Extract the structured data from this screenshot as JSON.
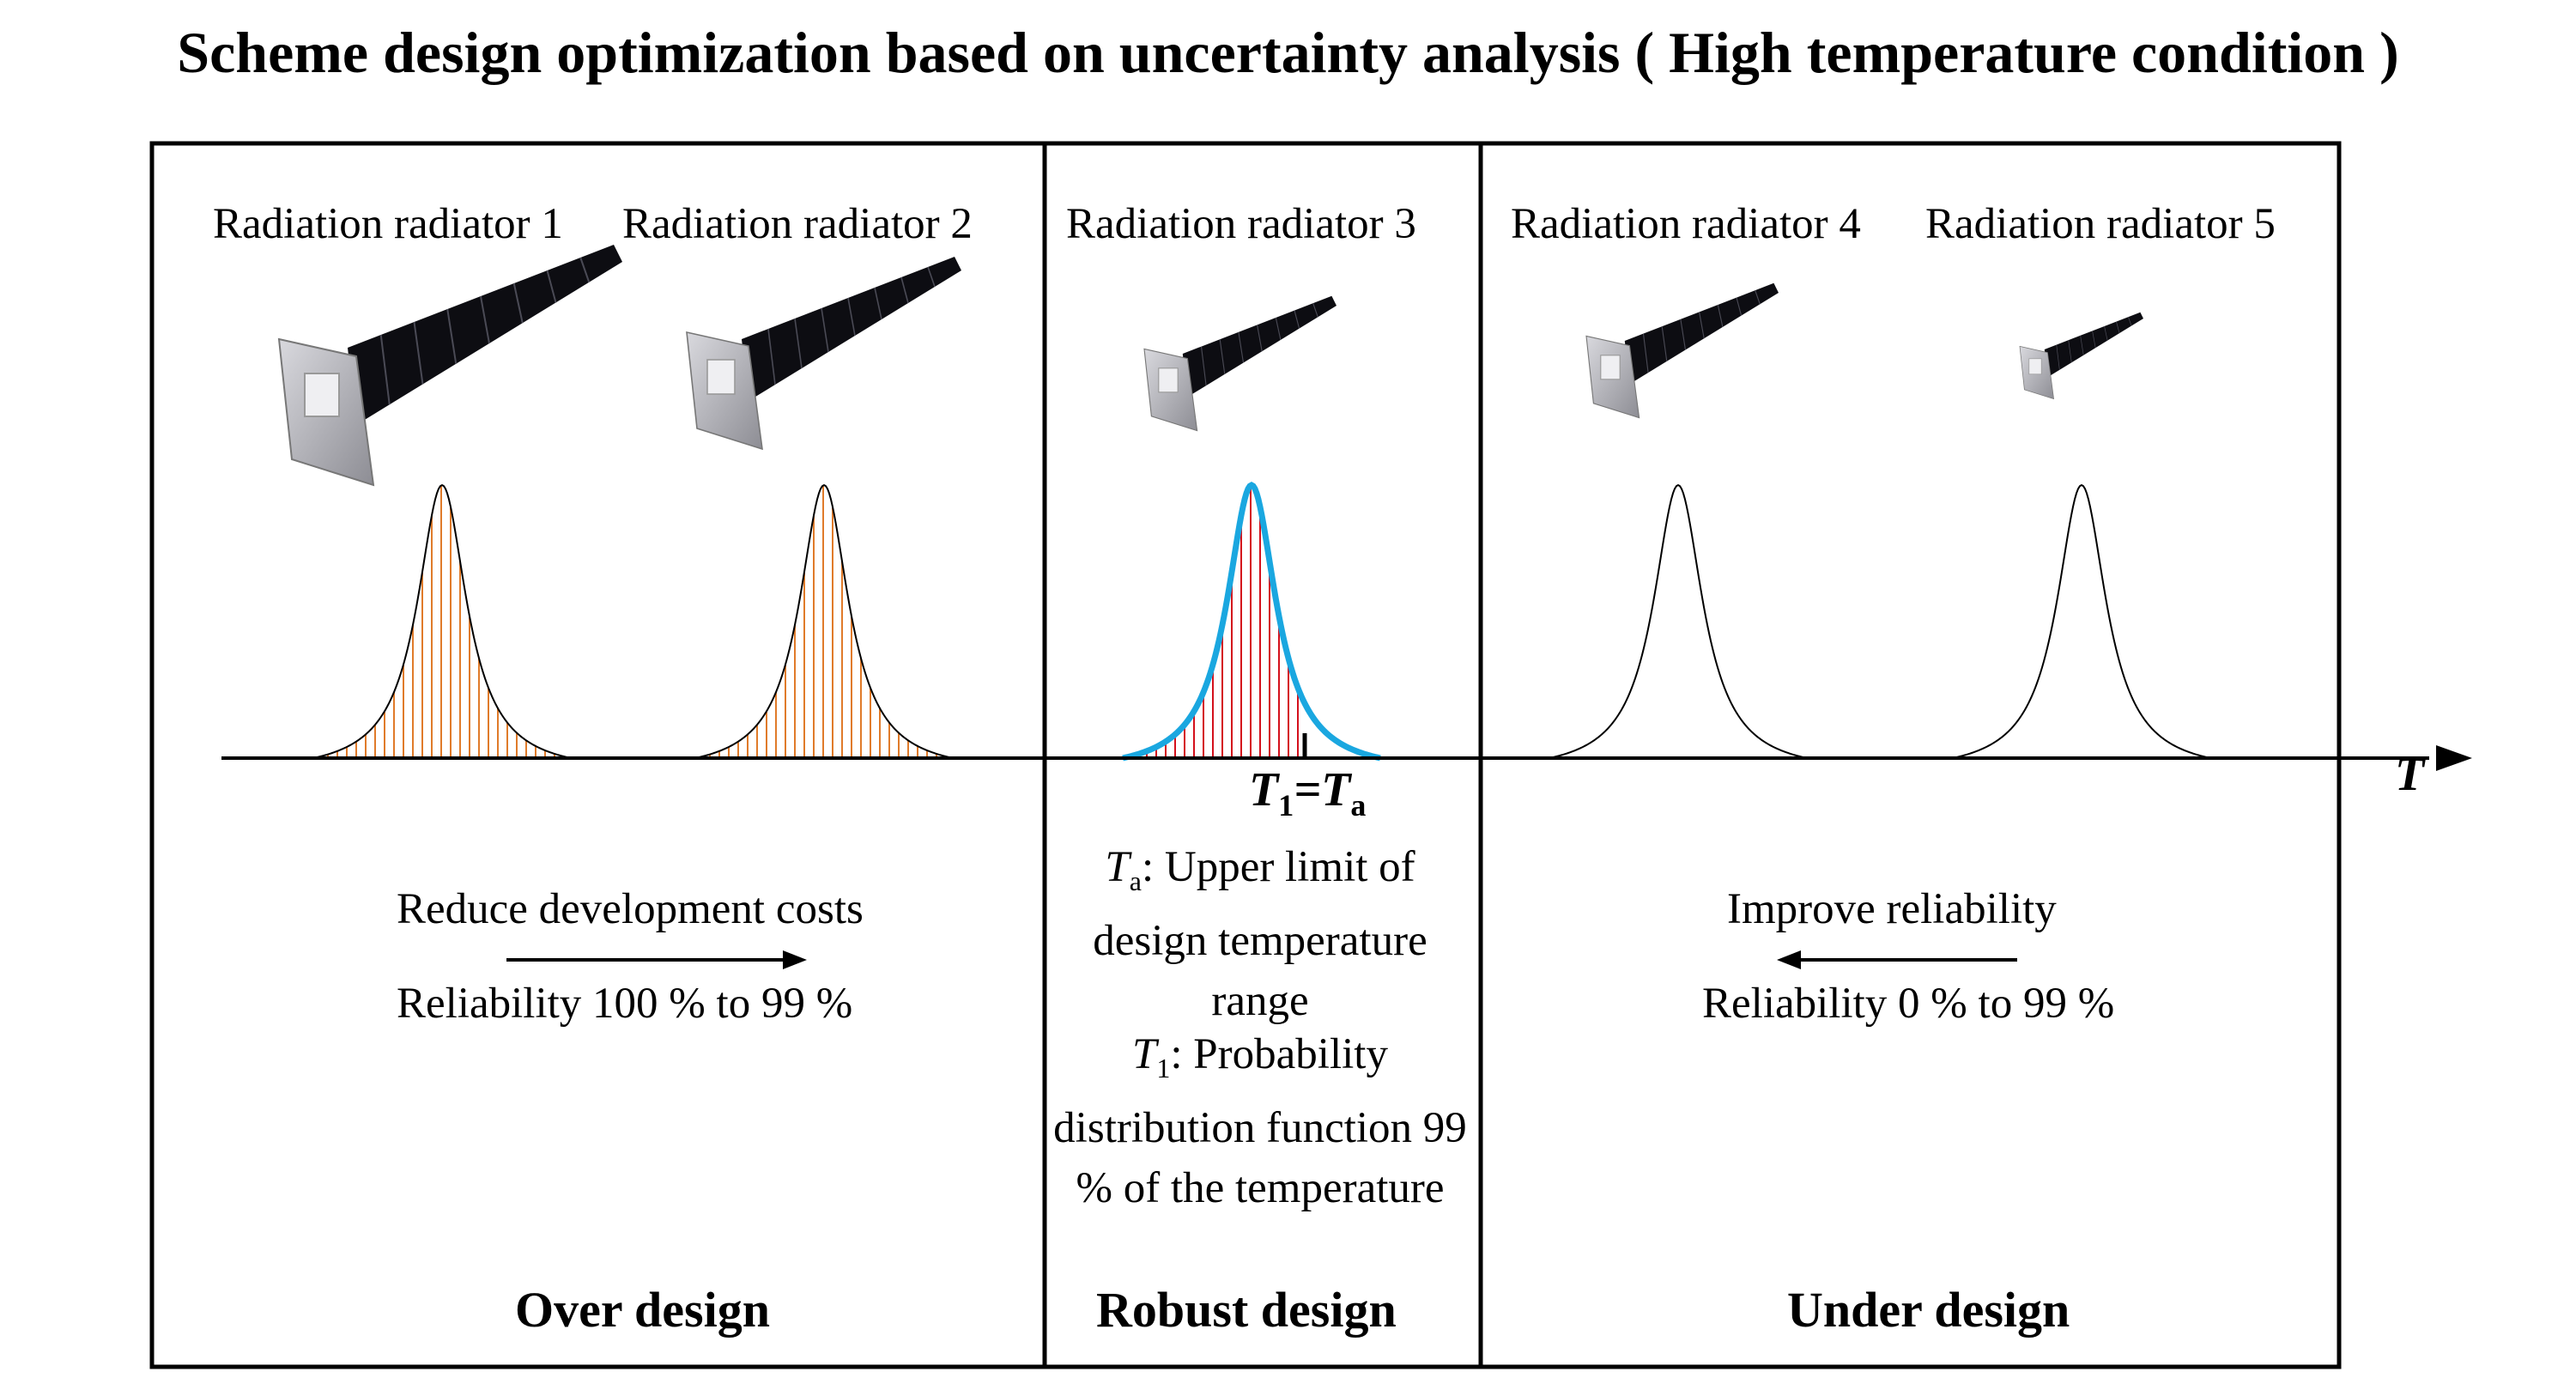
{
  "title": "Scheme design optimization based on uncertainty analysis ( High temperature condition )",
  "radiators": [
    {
      "label": "Radiation radiator 1"
    },
    {
      "label": "Radiation radiator 2"
    },
    {
      "label": "Radiation radiator 3"
    },
    {
      "label": "Radiation radiator 4"
    },
    {
      "label": "Radiation radiator 5"
    }
  ],
  "axis": {
    "label": "T"
  },
  "threshold": {
    "lhs": "T",
    "lhs_sub": "1",
    "eq": "=",
    "rhs": "T",
    "rhs_sub": "a"
  },
  "left_panel": {
    "arrow_text": "Reduce development costs",
    "reliability": "Reliability 100 % to 99 %",
    "section_label": "Over design"
  },
  "middle_panel": {
    "ta_symbol": "T",
    "ta_sub": "a",
    "ta_text": ": Upper limit of design temperature range",
    "t1_symbol": "T",
    "t1_sub": "1",
    "t1_text": ": Probability distribution function 99 % of the temperature",
    "section_label": "Robust design"
  },
  "right_panel": {
    "arrow_text": "Improve reliability",
    "reliability": "Reliability 0 % to 99 %",
    "section_label": "Under design"
  },
  "colors": {
    "over_hatch": "#e07b2a",
    "robust_hatch": "#d4101c",
    "robust_outline": "#1aa7e0",
    "outline": "#000000",
    "panel_dark": "#0d0d12",
    "frame_grey": "#b9b9bf"
  }
}
